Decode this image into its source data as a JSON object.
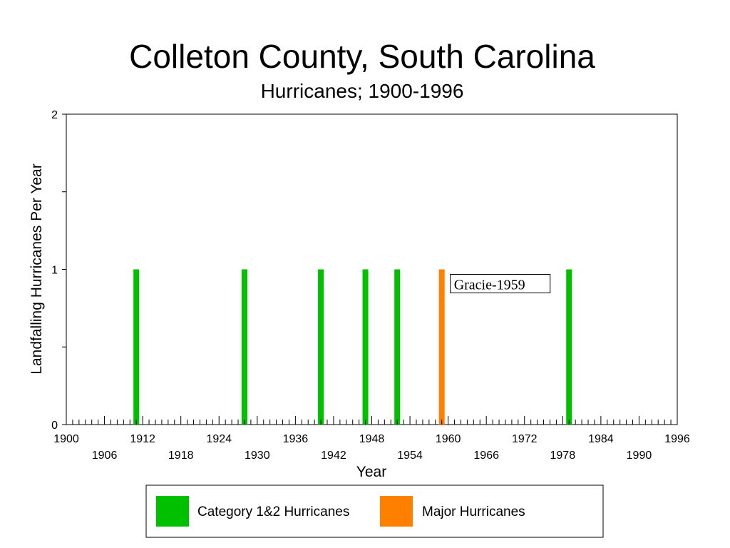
{
  "chart_data": {
    "type": "bar",
    "title": "Colleton County, South Carolina",
    "subtitle": "Hurricanes;  1900-1996",
    "xlabel": "Year",
    "ylabel": "Landfalling Hurricanes Per Year",
    "xlim": [
      1900,
      1996
    ],
    "ylim": [
      0,
      2
    ],
    "x_tick_labels_upper": [
      "1900",
      "1912",
      "1924",
      "1936",
      "1948",
      "1960",
      "1972",
      "1984",
      "1996"
    ],
    "x_tick_labels_lower": [
      "1906",
      "1918",
      "1930",
      "1942",
      "1954",
      "1966",
      "1978",
      "1990"
    ],
    "y_tick_labels": [
      "0",
      "1",
      "2"
    ],
    "legend_position": "bottom",
    "grid": false,
    "series": [
      {
        "name": "Category 1&2 Hurricanes",
        "color": "#00c000",
        "points": [
          {
            "year": 1911,
            "value": 1
          },
          {
            "year": 1928,
            "value": 1
          },
          {
            "year": 1940,
            "value": 1
          },
          {
            "year": 1947,
            "value": 1
          },
          {
            "year": 1952,
            "value": 1
          },
          {
            "year": 1979,
            "value": 1
          }
        ]
      },
      {
        "name": "Major Hurricanes",
        "color": "#ff8000",
        "points": [
          {
            "year": 1959,
            "value": 1
          }
        ]
      }
    ],
    "annotations": [
      {
        "text": "Gracie-1959",
        "year": 1959,
        "value": 1
      }
    ]
  }
}
